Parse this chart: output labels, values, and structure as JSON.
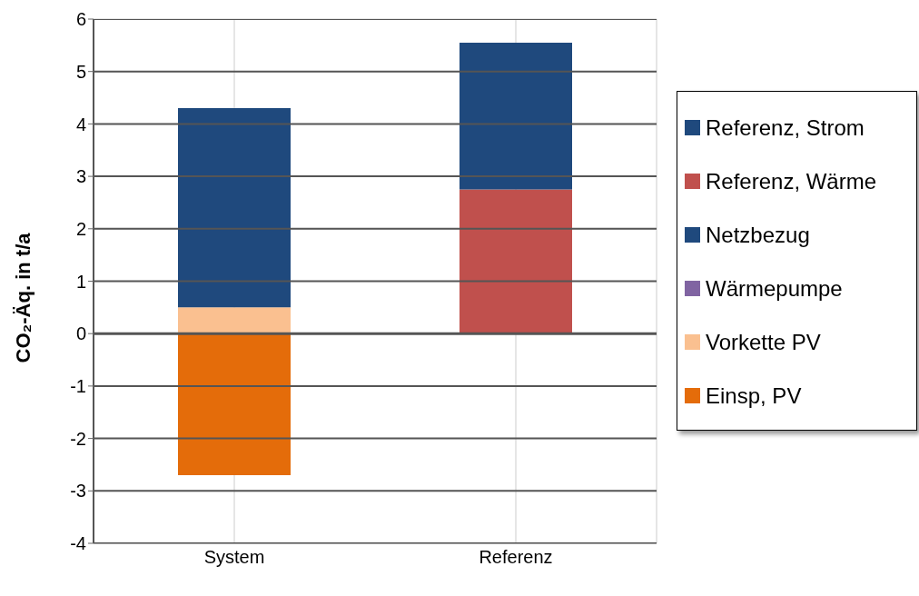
{
  "chart_data": {
    "type": "bar",
    "stacked": true,
    "ylabel": "CO₂-Äq. in t/a",
    "categories": [
      "System",
      "Referenz"
    ],
    "series": [
      {
        "name": "Einsp, PV",
        "color": "#e46c0a",
        "values": [
          -2.7,
          null
        ]
      },
      {
        "name": "Vorkette PV",
        "color": "#fac090",
        "values": [
          0.5,
          null
        ]
      },
      {
        "name": "Wärmepumpe",
        "color": "#8064a2",
        "values": [
          0,
          null
        ]
      },
      {
        "name": "Netzbezug",
        "color": "#1f497d",
        "values": [
          3.8,
          null
        ]
      },
      {
        "name": "Referenz, Wärme",
        "color": "#c0504d",
        "values": [
          null,
          2.75
        ]
      },
      {
        "name": "Referenz, Strom",
        "color": "#1f497d",
        "values": [
          null,
          2.8
        ]
      }
    ],
    "ylim": [
      -4,
      6
    ],
    "yticks": [
      -4,
      -3,
      -2,
      -1,
      0,
      1,
      2,
      3,
      4,
      5,
      6
    ],
    "grid": true,
    "legend": "right"
  }
}
